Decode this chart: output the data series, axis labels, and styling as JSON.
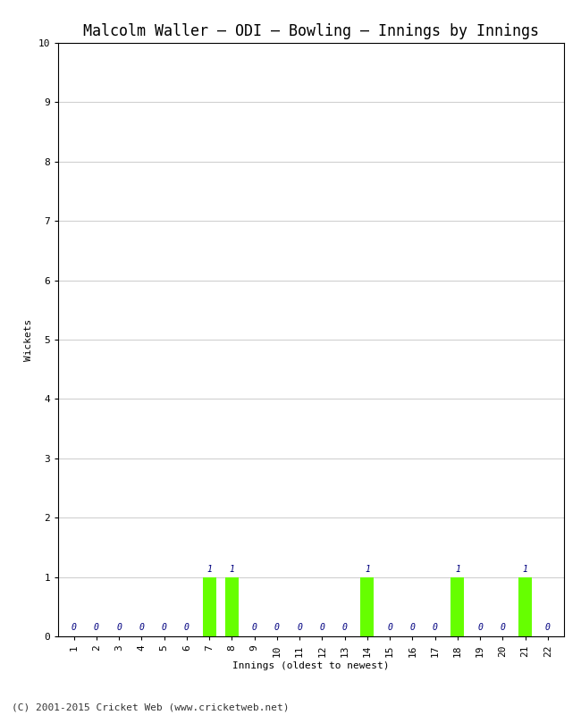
{
  "title": "Malcolm Waller – ODI – Bowling – Innings by Innings",
  "xlabel": "Innings (oldest to newest)",
  "ylabel": "Wickets",
  "innings": [
    1,
    2,
    3,
    4,
    5,
    6,
    7,
    8,
    9,
    10,
    11,
    12,
    13,
    14,
    15,
    16,
    17,
    18,
    19,
    20,
    21,
    22
  ],
  "wickets": [
    0,
    0,
    0,
    0,
    0,
    0,
    1,
    1,
    0,
    0,
    0,
    0,
    0,
    1,
    0,
    0,
    0,
    1,
    0,
    0,
    1,
    0
  ],
  "bar_color": "#66ff00",
  "label_color": "#000080",
  "ylim": [
    0,
    10
  ],
  "yticks": [
    0,
    1,
    2,
    3,
    4,
    5,
    6,
    7,
    8,
    9,
    10
  ],
  "background_color": "#ffffff",
  "plot_bg_color": "#ffffff",
  "grid_color": "#d0d0d0",
  "spine_color": "#000000",
  "footer": "(C) 2001-2015 Cricket Web (www.cricketweb.net)",
  "title_fontsize": 12,
  "axis_label_fontsize": 8,
  "tick_fontsize": 8,
  "footer_fontsize": 8,
  "label_fontsize": 7,
  "bar_width": 0.6
}
